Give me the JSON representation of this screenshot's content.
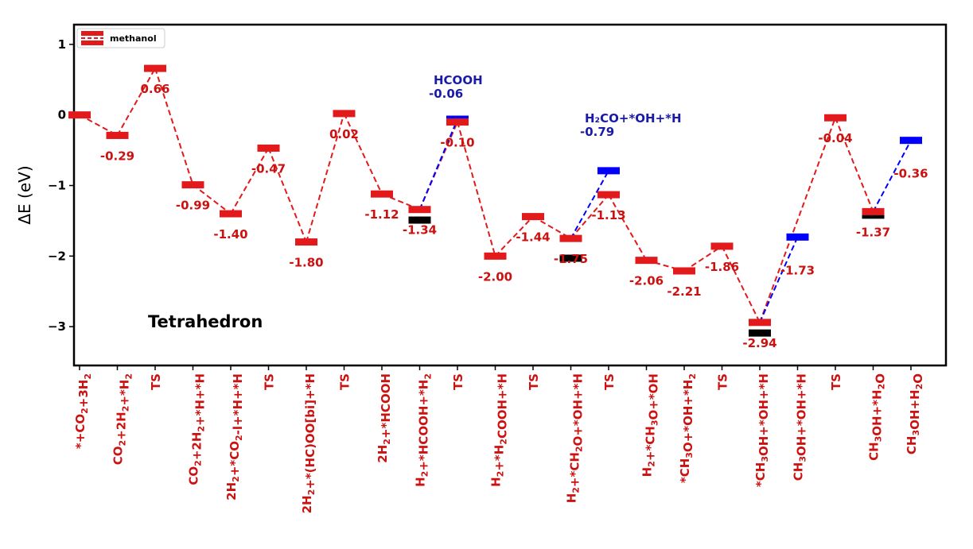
{
  "chart_data": {
    "type": "line",
    "ylabel": "ΔE (eV)",
    "ylim": [
      -3.55,
      1.28
    ],
    "yticks": [
      1,
      0,
      -1,
      -2,
      -3
    ],
    "ytick_labels": [
      "1",
      "0",
      "−1",
      "−2",
      "−3"
    ],
    "grid": false,
    "panel_label": "Tetrahedron",
    "legend": {
      "position": "top-left",
      "entries": [
        "methanol"
      ]
    },
    "categories": [
      "*+CO2+3H2",
      "CO2+2H2+*H2",
      "TS",
      "CO2+2H2+*H+*H",
      "2H2+*CO2-l+*H+*H",
      "TS",
      "2H2+*(HC)OO[bi]+*H",
      "TS",
      "2H2+*HCOOH",
      "H2+*HCOOH+*H2",
      "TS",
      "H2+*H2COOH+*H",
      "TS",
      "H2+*CH2O+*OH+*H",
      "TS",
      "H2+*CH3O+*OH",
      "*CH3O+*OH+*H2",
      "TS",
      "*CH3OH+*OH+*H",
      "CH3OH+*OH+*H",
      "TS",
      "CH3OH+*H2O",
      "CH3OH+H2O"
    ],
    "series": [
      {
        "name": "methanol",
        "color": "#e31a1c",
        "style": "dashed",
        "values": [
          0.0,
          -0.29,
          0.66,
          -0.99,
          -1.4,
          -0.47,
          -1.8,
          0.02,
          -1.12,
          -1.34,
          -0.1,
          -2.0,
          -1.44,
          -1.75,
          -1.13,
          -2.06,
          -2.21,
          -1.86,
          -2.94,
          null,
          -0.04,
          -1.37,
          null
        ],
        "labels": [
          "",
          "-0.29",
          "0.66",
          "-0.99",
          "-1.40",
          "-0.47",
          "-1.80",
          "0.02",
          "-1.12",
          "-1.34",
          "-0.10",
          "-2.00",
          "-1.44",
          "-1.75",
          "-1.13",
          "-2.06",
          "-2.21",
          "-1.86",
          "-2.94",
          "",
          "-0.04",
          "-1.37",
          ""
        ]
      },
      {
        "color": "#0000ff",
        "style": "dashed",
        "segments": [
          {
            "points": [
              [
                9,
                -1.34
              ],
              [
                10,
                -0.06
              ]
            ]
          },
          {
            "points": [
              [
                13,
                -1.75
              ],
              [
                14,
                -0.79
              ]
            ]
          },
          {
            "points": [
              [
                18,
                -2.94
              ],
              [
                19,
                -1.73
              ]
            ]
          },
          {
            "points": [
              [
                21,
                -1.37
              ],
              [
                22,
                -0.36
              ]
            ]
          }
        ],
        "point_labels": [
          {
            "index": 19,
            "text": "-1.73",
            "value": -1.73
          },
          {
            "index": 22,
            "text": "-0.36",
            "value": -0.36
          }
        ]
      },
      {
        "color": "#000000",
        "style": "levels",
        "points": [
          [
            9,
            -1.49
          ],
          [
            13,
            -2.03
          ],
          [
            18,
            -3.09
          ],
          [
            21,
            -1.42
          ]
        ]
      }
    ],
    "annotations": [
      {
        "name": "HCOOH",
        "value_label": "-0.06",
        "index": 10,
        "color": "#1a1aaa"
      },
      {
        "name": "H₂CO+*OH+*H",
        "value_label": "-0.79",
        "index": 14,
        "color": "#1a1aaa"
      }
    ]
  }
}
